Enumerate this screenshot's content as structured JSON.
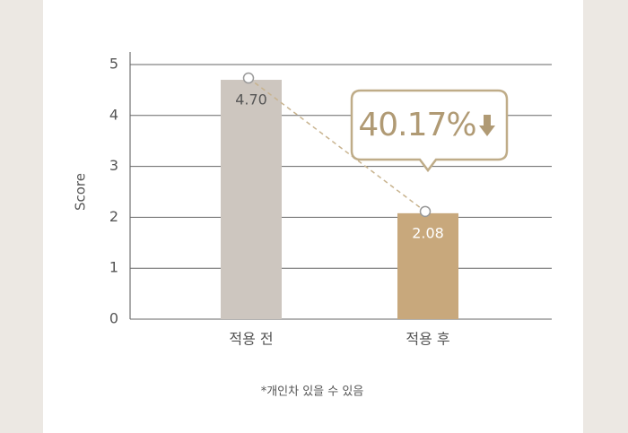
{
  "chart_data": {
    "type": "bar",
    "ylabel": "Score",
    "categories": [
      "적용 전",
      "적용 후"
    ],
    "values": [
      4.7,
      2.08
    ],
    "value_labels": [
      "4.70",
      "2.08"
    ],
    "colors": [
      "#cdc6bf",
      "#c8a87c"
    ],
    "value_label_colors": [
      "#555555",
      "#ffffff"
    ],
    "ylim": [
      0,
      5
    ],
    "yticks": [
      0,
      1,
      2,
      3,
      4,
      5
    ],
    "grid": true,
    "annotation": "40.17%",
    "note": "*개인차 있을 수 있음"
  }
}
